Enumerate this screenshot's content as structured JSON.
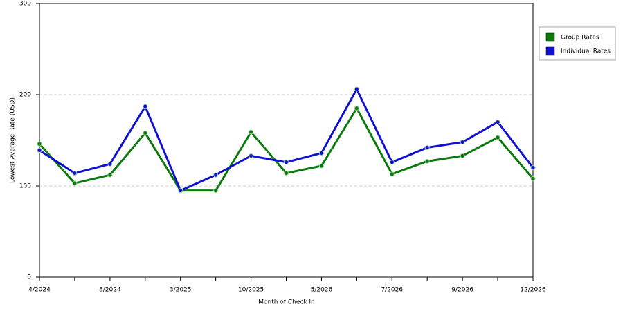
{
  "chart_data": {
    "type": "line",
    "x_label": "Month of Check In",
    "y_label": "Lowest Average Rate (USD)",
    "categories": [
      "4/2024",
      null,
      "8/2024",
      null,
      "3/2025",
      null,
      "10/2025",
      null,
      "5/2026",
      null,
      "7/2026",
      null,
      "9/2026",
      null,
      "12/2026"
    ],
    "series": [
      {
        "name": "Group Rates",
        "color": "#0a7a0a",
        "values": [
          146,
          103,
          112,
          158,
          95,
          95,
          159,
          114,
          122,
          185,
          113,
          127,
          133,
          153,
          108
        ]
      },
      {
        "name": "Individual Rates",
        "color": "#1010d0",
        "values": [
          139,
          114,
          124,
          187,
          95,
          112,
          133,
          126,
          136,
          206,
          126,
          142,
          148,
          170,
          120
        ]
      }
    ],
    "ylim": [
      0,
      300
    ],
    "yticks": [
      0,
      100,
      200,
      300
    ],
    "grid": true,
    "legend": "right"
  }
}
